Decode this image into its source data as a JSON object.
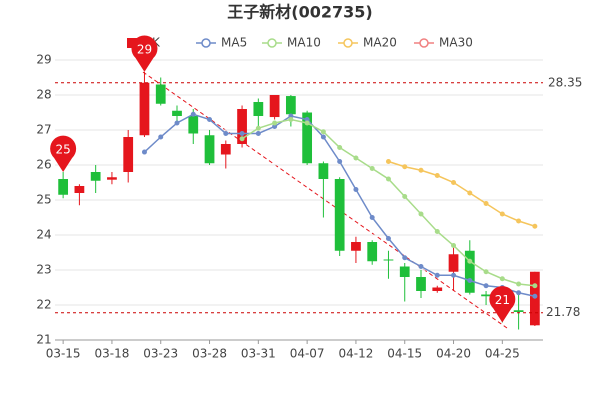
{
  "chart_data": {
    "type": "candlestick",
    "title": "王子新材(002735)",
    "period": "日K",
    "categories": [
      "03-15",
      null,
      null,
      "03-18",
      null,
      null,
      "03-23",
      null,
      null,
      "03-28",
      null,
      null,
      "03-31",
      null,
      null,
      "04-07",
      null,
      null,
      "04-12",
      null,
      null,
      "04-15",
      null,
      null,
      "04-20",
      null,
      null,
      "04-25",
      null,
      null
    ],
    "open": [
      25.6,
      25.2,
      25.8,
      25.58,
      25.8,
      26.85,
      28.3,
      27.55,
      27.4,
      26.85,
      26.3,
      26.6,
      27.8,
      27.37,
      27.97,
      27.5,
      26.05,
      25.6,
      23.55,
      23.8,
      23.3,
      23.1,
      22.8,
      22.4,
      22.95,
      23.55,
      22.3,
      22.25,
      21.85,
      21.42
    ],
    "close": [
      25.15,
      25.4,
      25.55,
      25.65,
      26.8,
      28.35,
      27.75,
      27.4,
      26.9,
      26.05,
      26.6,
      27.6,
      27.4,
      28.0,
      27.45,
      26.05,
      25.6,
      23.55,
      23.8,
      23.25,
      23.28,
      22.8,
      22.4,
      22.5,
      23.45,
      22.35,
      22.25,
      21.85,
      21.8,
      22.95
    ],
    "high": [
      25.8,
      25.45,
      26.0,
      25.8,
      27.0,
      28.66,
      28.5,
      27.7,
      27.6,
      27.0,
      26.7,
      27.7,
      27.9,
      28.0,
      28.0,
      27.55,
      26.1,
      25.65,
      23.95,
      23.85,
      23.55,
      23.2,
      23.0,
      22.55,
      23.7,
      23.85,
      22.4,
      22.4,
      22.3,
      22.95
    ],
    "low": [
      25.05,
      24.85,
      25.2,
      25.45,
      25.5,
      26.8,
      27.7,
      27.2,
      26.6,
      26.0,
      25.9,
      26.5,
      27.0,
      27.3,
      27.1,
      26.0,
      24.5,
      23.4,
      23.2,
      23.15,
      22.75,
      22.1,
      22.2,
      22.35,
      22.4,
      22.3,
      22.0,
      21.5,
      21.3,
      21.4
    ],
    "up_color": "#e5161d",
    "down_color": "#1fbf3a",
    "series": [
      {
        "name": "MA5",
        "color": "#6e8bc9",
        "values": [
          null,
          null,
          null,
          null,
          null,
          26.37,
          26.8,
          27.2,
          27.45,
          27.3,
          26.9,
          26.9,
          26.9,
          27.1,
          27.4,
          27.3,
          26.8,
          26.1,
          25.3,
          24.5,
          23.9,
          23.35,
          23.1,
          22.85,
          22.85,
          22.7,
          22.55,
          22.5,
          22.35,
          22.25
        ]
      },
      {
        "name": "MA10",
        "color": "#a8dc8a",
        "values": [
          null,
          null,
          null,
          null,
          null,
          null,
          null,
          null,
          null,
          null,
          null,
          26.75,
          27.05,
          27.2,
          27.3,
          27.2,
          26.95,
          26.5,
          26.2,
          25.9,
          25.6,
          25.1,
          24.6,
          24.1,
          23.7,
          23.25,
          22.95,
          22.75,
          22.6,
          22.55
        ]
      },
      {
        "name": "MA20",
        "color": "#f5c55c",
        "values": [
          null,
          null,
          null,
          null,
          null,
          null,
          null,
          null,
          null,
          null,
          null,
          null,
          null,
          null,
          null,
          null,
          null,
          null,
          null,
          null,
          26.1,
          25.95,
          25.85,
          25.7,
          25.5,
          25.2,
          24.9,
          24.6,
          24.4,
          24.25
        ]
      },
      {
        "name": "MA30",
        "color": "#f08080",
        "values": [
          null,
          null,
          null,
          null,
          null,
          null,
          null,
          null,
          null,
          null,
          null,
          null,
          null,
          null,
          null,
          null,
          null,
          null,
          null,
          null,
          null,
          null,
          null,
          null,
          null,
          null,
          null,
          null,
          null,
          null
        ]
      }
    ],
    "hlines": [
      28.35,
      21.78
    ],
    "markers": [
      "25",
      "29",
      "21"
    ],
    "ylim": [
      21,
      29
    ],
    "yticks": [
      21,
      22,
      23,
      24,
      25,
      26,
      27,
      28,
      29
    ],
    "grid": true
  }
}
